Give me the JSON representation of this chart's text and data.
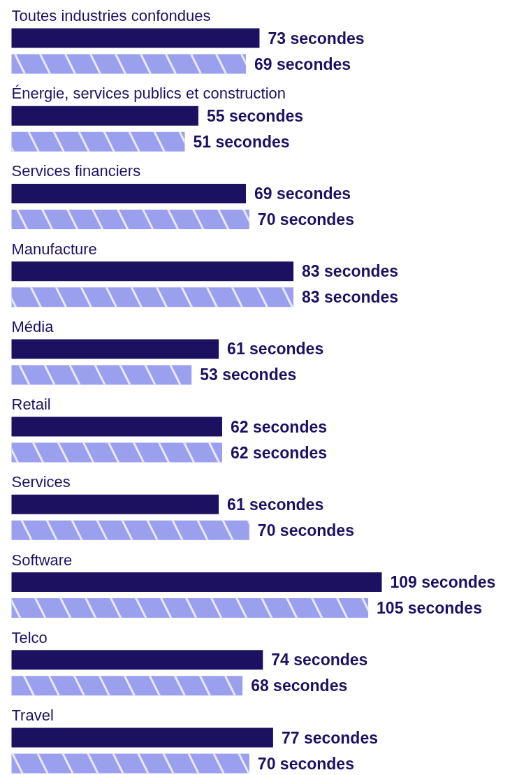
{
  "chart_data": {
    "type": "bar",
    "orientation": "horizontal",
    "tick_labels": false,
    "categories": [
      "Toutes industries confondues",
      "Énergie, services publics et construction",
      "Services financiers",
      "Manufacture",
      "Média",
      "Retail",
      "Services",
      "Software",
      "Telco",
      "Travel"
    ],
    "series": [
      {
        "color": "#1c1161",
        "values": [
          73,
          55,
          69,
          83,
          61,
          62,
          61,
          109,
          74,
          77
        ],
        "value_labels": [
          "73 secondes",
          "55 secondes",
          "69 secondes",
          "83 secondes",
          "61 secondes",
          "62 secondes",
          "61 secondes",
          "109 secondes",
          "74 secondes",
          "77 secondes"
        ]
      },
      {
        "color": "#9ba0ee",
        "values": [
          69,
          51,
          70,
          83,
          53,
          62,
          70,
          105,
          68,
          70
        ],
        "value_labels": [
          "69 secondes",
          "51 secondes",
          "70 secondes",
          "83 secondes",
          "53 secondes",
          "62 secondes",
          "70 secondes",
          "105 secondes",
          "68 secondes",
          "70 secondes"
        ]
      }
    ]
  }
}
